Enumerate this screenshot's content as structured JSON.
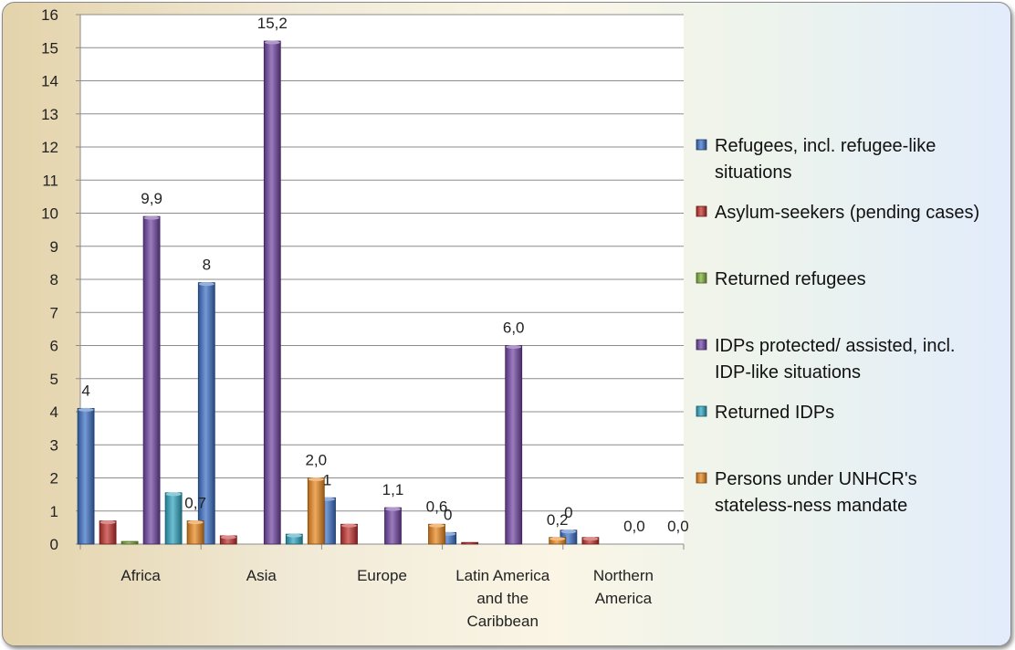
{
  "chart_data": {
    "type": "bar",
    "categories": [
      "Africa",
      "Asia",
      "Europe",
      "Latin America and the Caribbean",
      "Northern America"
    ],
    "category_lines": [
      [
        "Africa"
      ],
      [
        "Asia"
      ],
      [
        "Europe"
      ],
      [
        "Latin America",
        "and the",
        "Caribbean"
      ],
      [
        "Northern",
        "America"
      ]
    ],
    "ylim": [
      0,
      16
    ],
    "yticks": [
      0,
      1,
      2,
      3,
      4,
      5,
      6,
      7,
      8,
      9,
      10,
      11,
      12,
      13,
      14,
      15,
      16
    ],
    "grid": true,
    "legend_position": "right",
    "series": [
      {
        "name": "Refugees, incl. refugee-like situations",
        "legend_lines": [
          "Refugees, incl. refugee-like",
          "situations"
        ],
        "color": "#3a6fc4",
        "values": [
          4.1,
          7.9,
          1.4,
          0.35,
          0.42
        ],
        "labels": [
          "4",
          "8",
          "1",
          "0",
          "0"
        ]
      },
      {
        "name": "Asylum-seekers (pending cases)",
        "legend_lines": [
          "Asylum-seekers (pending cases)"
        ],
        "color": "#c0302c",
        "values": [
          0.7,
          0.25,
          0.6,
          0.05,
          0.2
        ],
        "labels": [
          "",
          "",
          "",
          "",
          ""
        ]
      },
      {
        "name": "Returned refugees",
        "legend_lines": [
          "Returned refugees"
        ],
        "color": "#7fae3a",
        "values": [
          0.08,
          0.0,
          0.0,
          0.0,
          0.0
        ],
        "labels": [
          "",
          "",
          "",
          "",
          ""
        ]
      },
      {
        "name": "IDPs protected/ assisted, incl. IDP-like situations",
        "legend_lines": [
          "IDPs protected/ assisted, incl.",
          "IDP-like situations"
        ],
        "color": "#7044a2",
        "values": [
          9.9,
          15.2,
          1.1,
          6.0,
          0.0
        ],
        "labels": [
          "9,9",
          "15,2",
          "1,1",
          "6,0",
          "0,0"
        ]
      },
      {
        "name": "Returned IDPs",
        "legend_lines": [
          "Returned IDPs"
        ],
        "color": "#2fa3be",
        "values": [
          1.55,
          0.3,
          0.0,
          0.0,
          0.0
        ],
        "labels": [
          "",
          "",
          "",
          "",
          ""
        ]
      },
      {
        "name": "Persons under UNHCR's stateless-ness mandate",
        "legend_lines": [
          "Persons under UNHCR's",
          "stateless-ness mandate"
        ],
        "color": "#e8861c",
        "values": [
          0.7,
          2.0,
          0.6,
          0.2,
          0.0
        ],
        "labels": [
          "0,7",
          "2,0",
          "0,6",
          "0,2",
          "0,0"
        ]
      }
    ]
  }
}
